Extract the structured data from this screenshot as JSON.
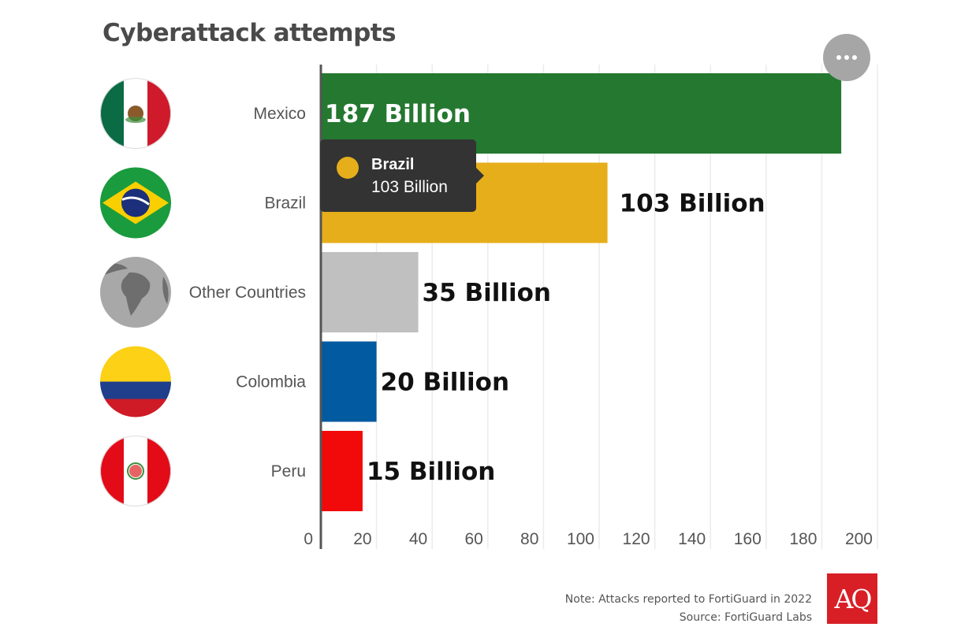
{
  "header": {
    "title": "Cyberattack attempts"
  },
  "menu": {
    "icon": "more-horizontal-icon",
    "label": "Chart menu"
  },
  "tooltip": {
    "name": "Brazil",
    "value": "103 Billion",
    "color": "#e6ae1a"
  },
  "footer": {
    "note": "Note: Attacks reported to FortiGuard in 2022",
    "source": "Source: FortiGuard Labs",
    "logo": "AQ",
    "logo_color": "#d81f26"
  },
  "chart_data": {
    "type": "bar",
    "orientation": "horizontal",
    "title": "Cyberattack attempts",
    "xlabel": "",
    "ylabel": "",
    "xlim": [
      0,
      200
    ],
    "grid": true,
    "x_ticks": [
      "0",
      "20",
      "40",
      "60",
      "80",
      "100",
      "120",
      "140",
      "160",
      "180",
      "200"
    ],
    "x_tick_values": [
      0,
      20,
      40,
      60,
      80,
      100,
      120,
      140,
      160,
      180,
      200
    ],
    "categories": [
      "Mexico",
      "Brazil",
      "Other Countries",
      "Colombia",
      "Peru"
    ],
    "values": [
      187,
      103,
      35,
      20,
      15
    ],
    "unit": "Billion",
    "data_labels": [
      "187 Billion",
      "103 Billion",
      "35 Billion",
      "20 Billion",
      "15 Billion"
    ],
    "colors": [
      "#247830",
      "#e6ae1a",
      "#c0c0c0",
      "#025aa0",
      "#f20a0a"
    ],
    "icons": [
      "mexico-flag-icon",
      "brazil-flag-icon",
      "globe-icon",
      "colombia-flag-icon",
      "peru-flag-icon"
    ]
  }
}
